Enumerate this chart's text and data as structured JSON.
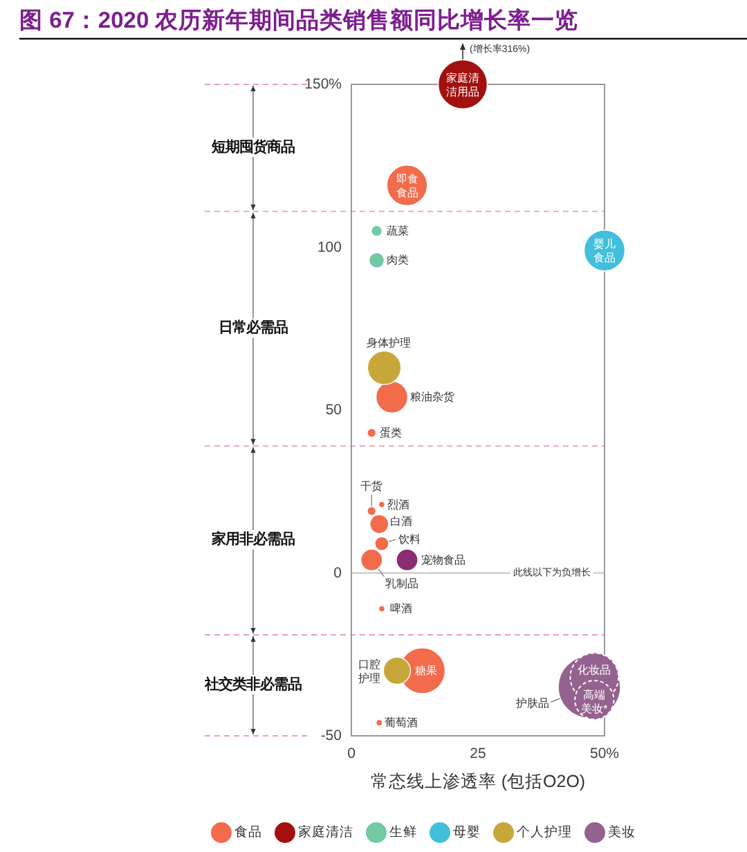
{
  "chart_data": {
    "type": "bubble",
    "title": "图 67：2020 农历新年期间品类销售额同比增长率一览",
    "xlabel": "常态线上渗透率 (包括O2O)",
    "xlim": [
      0,
      50
    ],
    "xticks": [
      0,
      25,
      {
        "value": 50,
        "label": "50%"
      }
    ],
    "ylim": [
      -50,
      150
    ],
    "yticks": [
      {
        "value": 150,
        "label": "150%"
      },
      100,
      50,
      0,
      -50
    ],
    "grid": false,
    "legend": "bottom",
    "series": [
      {
        "name": "食品",
        "color": "#f26b4b",
        "x": [
          11,
          8,
          4,
          4,
          6,
          5.5,
          6,
          4,
          6,
          14,
          5.5
        ],
        "values": [
          119,
          54,
          43,
          19,
          21,
          15,
          9,
          4,
          -11,
          -30,
          -46
        ],
        "sizes": [
          0.42,
          0.26,
          0.02,
          0.02,
          0.01,
          0.09,
          0.05,
          0.12,
          0.01,
          0.54,
          0.01
        ]
      },
      {
        "name": "家庭清洁",
        "color": "#a3100f",
        "x": [
          22
        ],
        "values": [
          150
        ],
        "sizes": [
          0.62
        ]
      },
      {
        "name": "生鲜",
        "color": "#72c9a3",
        "x": [
          5,
          5
        ],
        "values": [
          105,
          96
        ],
        "sizes": [
          0.03,
          0.06
        ]
      },
      {
        "name": "母婴",
        "color": "#41bfdb",
        "x": [
          50
        ],
        "values": [
          99
        ],
        "sizes": [
          0.43
        ]
      },
      {
        "name": "个人护理",
        "color": "#c8a73a",
        "x": [
          6.5,
          9
        ],
        "values": [
          63,
          -30
        ],
        "sizes": [
          0.29,
          0.19
        ]
      },
      {
        "name": "美妆",
        "color": "#94628f",
        "x": [
          47
        ],
        "values": [
          -35
        ],
        "sizes": [
          1
        ]
      },
      {
        "color": "#94628f",
        "x": [
          48,
          48
        ],
        "values": [
          -32,
          -39
        ],
        "sizes": [
          0.6,
          0.39
        ],
        "line_style": "dashed"
      },
      {
        "color": "#8c2c72",
        "x": [
          11
        ],
        "values": [
          4
        ],
        "sizes": [
          0.12
        ]
      }
    ],
    "ref_lines": [
      {
        "axis": "y",
        "value": 111,
        "color": "#e8a2aa",
        "line_style": "dashed"
      },
      {
        "axis": "y",
        "value": 39,
        "color": "#e8a2aa",
        "line_style": "dashed"
      },
      {
        "axis": "y",
        "value": -19,
        "color": "#e8a2aa",
        "line_style": "dashed"
      },
      {
        "axis": "y",
        "value": 0,
        "label": "此线以下为负增长",
        "color": "#c4c4c4"
      }
    ],
    "annotations": [
      "短期囤货商品",
      "日常必需品",
      "家用非必需品",
      "社交类非必需品",
      {
        "text": "家庭清洁用品",
        "x": 22,
        "y": 150
      },
      {
        "text": "(增长率316%)",
        "x": 22,
        "y": 150
      },
      {
        "text": "即食食品",
        "x": 11,
        "y": 119
      },
      {
        "text": "蔬菜",
        "x": 5,
        "y": 105
      },
      {
        "text": "肉类",
        "x": 5,
        "y": 96
      },
      {
        "text": "婴儿食品",
        "x": 50,
        "y": 99
      },
      {
        "text": "身体护理",
        "x": 6.5,
        "y": 63
      },
      {
        "text": "粮油杂货",
        "x": 8,
        "y": 54
      },
      {
        "text": "蛋类",
        "x": 4,
        "y": 43
      },
      {
        "text": "干货",
        "x": 4,
        "y": 19
      },
      {
        "text": "烈酒",
        "x": 6,
        "y": 21
      },
      {
        "text": "白酒",
        "x": 5.5,
        "y": 15
      },
      {
        "text": "饮料",
        "x": 6,
        "y": 9
      },
      {
        "text": "宠物食品",
        "x": 11,
        "y": 4
      },
      {
        "text": "乳制品",
        "x": 4,
        "y": 4
      },
      {
        "text": "啤酒",
        "x": 6,
        "y": -11
      },
      {
        "text": "口腔护理",
        "x": 9,
        "y": -30
      },
      {
        "text": "糖果",
        "x": 14,
        "y": -30
      },
      {
        "text": "葡萄酒",
        "x": 5.5,
        "y": -46
      },
      {
        "text": "护肤品",
        "x": 47,
        "y": -35
      },
      {
        "text": "化妆品",
        "x": 48,
        "y": -32
      },
      {
        "text": "高端美妆*",
        "x": 48,
        "y": -39
      }
    ]
  }
}
